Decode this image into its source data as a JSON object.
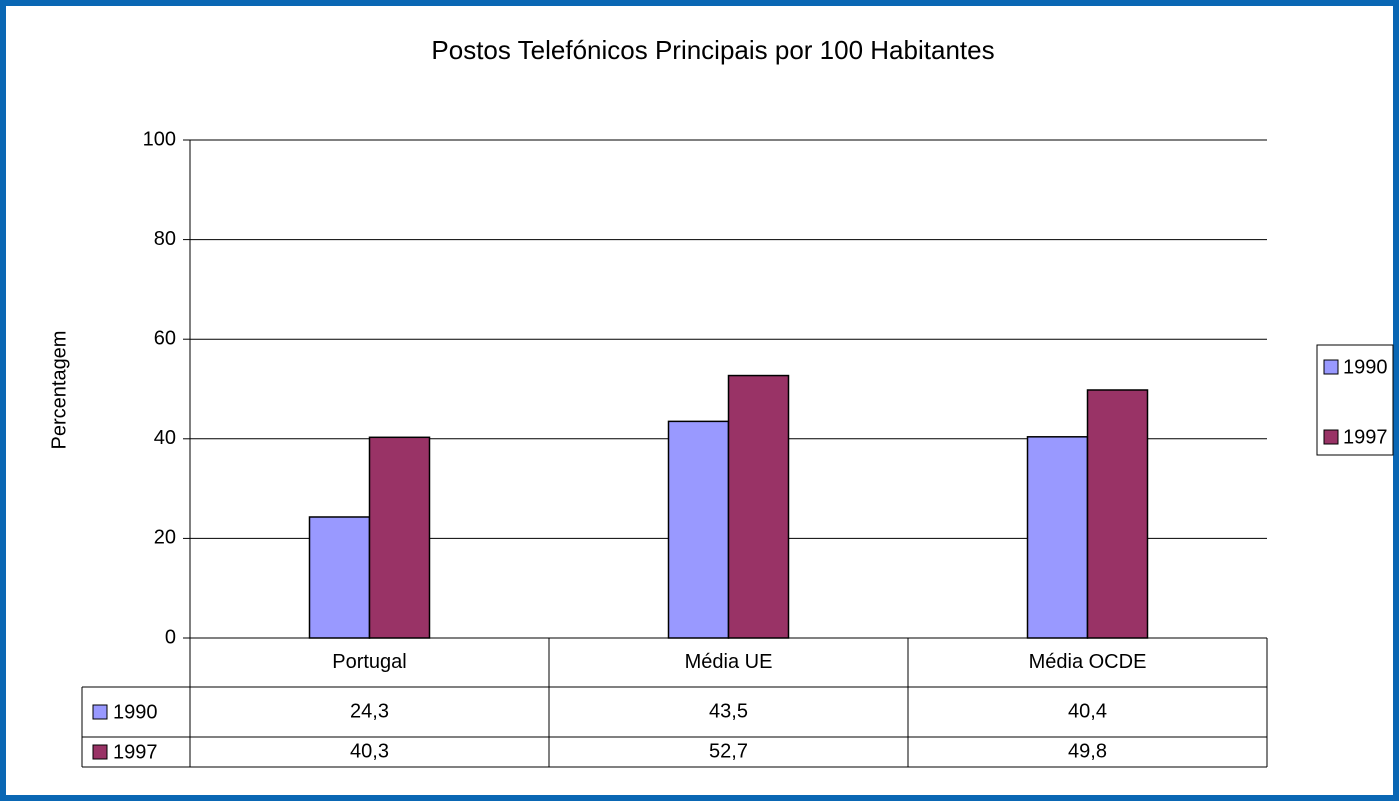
{
  "chart_data": {
    "type": "bar",
    "title": "Postos Telefónicos Principais por 100 Habitantes",
    "y_label": "Percentagem",
    "categories": [
      "Portugal",
      "Média UE",
      "Média OCDE"
    ],
    "series": [
      {
        "name": "1990",
        "color": "#9999ff",
        "values": [
          24.3,
          43.5,
          40.4
        ],
        "value_labels": [
          "24,3",
          "43,5",
          "40,4"
        ]
      },
      {
        "name": "1997",
        "color": "#993366",
        "values": [
          40.3,
          52.7,
          49.8
        ],
        "value_labels": [
          "40,3",
          "52,7",
          "49,8"
        ]
      }
    ],
    "ylim": [
      0,
      100
    ],
    "yticks": [
      0,
      20,
      40,
      60,
      80,
      100
    ],
    "grid": true,
    "legend": "right"
  }
}
